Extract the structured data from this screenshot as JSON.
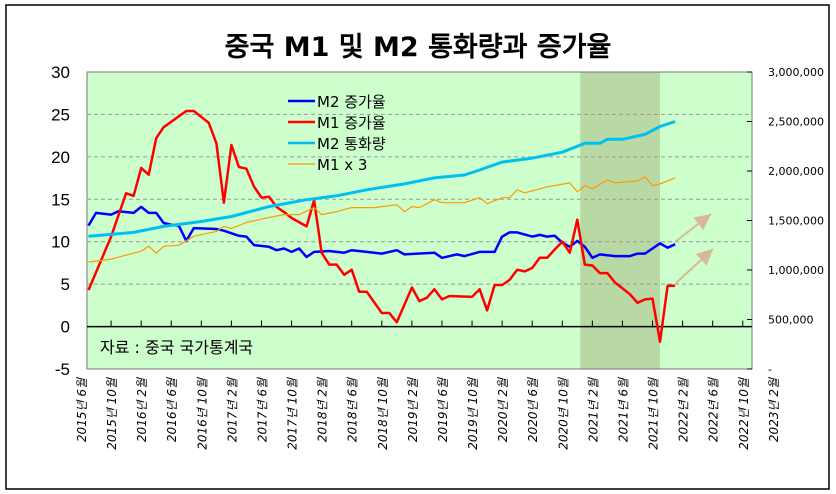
{
  "chart_data": {
    "type": "line",
    "title": "중국 M1 및 M2 통화량과 증가율",
    "source_note": "자료 : 중국 국가통계국",
    "x_unit": "months since 2015-06",
    "x_tick_labels": [
      "2015년 6월",
      "2015년 10월",
      "2016년 2월",
      "2016년 6월",
      "2016년 10월",
      "2017년 2월",
      "2017년 6월",
      "2017년 10월",
      "2018년 2월",
      "2018년 6월",
      "2018년 10월",
      "2019년 2월",
      "2019년 6월",
      "2019년 10월",
      "2020년 2월",
      "2020년 6월",
      "2020년 10월",
      "2021년 2월",
      "2021년 6월",
      "2021년 10월",
      "2022년 2월",
      "2022년 6월",
      "2022년 10월",
      "2023년 2월"
    ],
    "xlim": [
      0,
      92
    ],
    "y_left": {
      "ylim": [
        -5,
        30
      ],
      "ticks": [
        "30",
        "25",
        "20",
        "15",
        "10",
        "5",
        "0",
        "-5"
      ],
      "grid": true
    },
    "y_right": {
      "ylim": [
        0,
        3000000
      ],
      "ticks": [
        "3,000,000",
        "2,500,000",
        "2,000,000",
        "1,500,000",
        "1,000,000",
        "500,000",
        "-"
      ]
    },
    "shaded_range": [
      66.4,
      77
    ],
    "legend": {
      "placement": "top-center",
      "entries": [
        "M2 증가율",
        "M1 증가율",
        "M2 통화량",
        "M1 x 3"
      ]
    },
    "colors": {
      "m2_growth": "#0000ff",
      "m1_growth": "#ff0000",
      "m2_stock": "#00c0f0",
      "m1x3": "#ff9900",
      "plot_bg": "#ccffcc",
      "shade": "#b8d8a4",
      "arrow": "#d8b898"
    },
    "series": [
      {
        "name": "M2 증가율",
        "axis": "left",
        "points": [
          [
            1,
            11.9
          ],
          [
            2,
            13.4
          ],
          [
            4,
            13.2
          ],
          [
            5,
            13.6
          ],
          [
            7,
            13.4
          ],
          [
            8,
            14.1
          ],
          [
            9,
            13.4
          ],
          [
            10,
            13.4
          ],
          [
            11,
            12.2
          ],
          [
            12,
            12
          ],
          [
            13,
            11.9
          ],
          [
            14,
            10.1
          ],
          [
            15,
            11.6
          ],
          [
            18,
            11.5
          ],
          [
            19,
            11.3
          ],
          [
            21,
            10.7
          ],
          [
            22,
            10.6
          ],
          [
            23,
            9.6
          ],
          [
            25,
            9.4
          ],
          [
            26,
            9.0
          ],
          [
            27,
            9.2
          ],
          [
            28,
            8.8
          ],
          [
            29,
            9.2
          ],
          [
            30,
            8.2
          ],
          [
            31,
            8.8
          ],
          [
            33,
            8.9
          ],
          [
            35,
            8.7
          ],
          [
            36,
            9.0
          ],
          [
            38,
            8.8
          ],
          [
            40,
            8.6
          ],
          [
            42,
            9.0
          ],
          [
            43,
            8.5
          ],
          [
            47,
            8.7
          ],
          [
            48,
            8.1
          ],
          [
            50,
            8.5
          ],
          [
            51,
            8.3
          ],
          [
            53,
            8.8
          ],
          [
            55,
            8.8
          ],
          [
            56,
            10.6
          ],
          [
            57,
            11.1
          ],
          [
            58,
            11.1
          ],
          [
            60,
            10.6
          ],
          [
            61,
            10.8
          ],
          [
            62,
            10.6
          ],
          [
            63,
            10.7
          ],
          [
            64,
            9.9
          ],
          [
            65,
            9.4
          ],
          [
            66,
            10.1
          ],
          [
            67,
            9.4
          ],
          [
            68,
            8.1
          ],
          [
            69,
            8.5
          ],
          [
            71,
            8.3
          ],
          [
            73,
            8.3
          ],
          [
            74,
            8.6
          ],
          [
            75,
            8.6
          ],
          [
            77,
            9.8
          ],
          [
            78,
            9.3
          ],
          [
            79,
            9.7
          ]
        ]
      },
      {
        "name": "M1 증가율",
        "axis": "left",
        "points": [
          [
            1,
            4.3
          ],
          [
            4,
            10.6
          ],
          [
            6,
            15.7
          ],
          [
            7,
            15.4
          ],
          [
            8,
            18.7
          ],
          [
            9,
            17.9
          ],
          [
            10,
            22.2
          ],
          [
            11,
            23.5
          ],
          [
            14,
            25.4
          ],
          [
            15,
            25.4
          ],
          [
            17,
            24
          ],
          [
            18,
            21.6
          ],
          [
            19,
            14.6
          ],
          [
            20,
            21.4
          ],
          [
            21,
            18.8
          ],
          [
            22,
            18.6
          ],
          [
            23,
            16.5
          ],
          [
            24,
            15.2
          ],
          [
            25,
            15.3
          ],
          [
            26,
            14.1
          ],
          [
            27,
            13.5
          ],
          [
            28,
            12.8
          ],
          [
            30,
            11.8
          ],
          [
            31,
            14.9
          ],
          [
            32,
            8.7
          ],
          [
            33,
            7.3
          ],
          [
            34,
            7.3
          ],
          [
            35,
            6.1
          ],
          [
            36,
            6.7
          ],
          [
            37,
            4.1
          ],
          [
            38,
            4.1
          ],
          [
            40,
            1.6
          ],
          [
            41,
            1.6
          ],
          [
            42,
            0.5
          ],
          [
            44,
            4.6
          ],
          [
            45,
            3.0
          ],
          [
            46,
            3.4
          ],
          [
            47,
            4.4
          ],
          [
            48,
            3.2
          ],
          [
            49,
            3.6
          ],
          [
            52,
            3.5
          ],
          [
            53,
            4.4
          ],
          [
            54,
            1.9
          ],
          [
            55,
            4.9
          ],
          [
            56,
            4.9
          ],
          [
            57,
            5.5
          ],
          [
            58,
            6.7
          ],
          [
            59,
            6.5
          ],
          [
            60,
            6.9
          ],
          [
            61,
            8.1
          ],
          [
            62,
            8.1
          ],
          [
            63,
            9.1
          ],
          [
            64,
            10
          ],
          [
            65,
            8.7
          ],
          [
            66,
            12.6
          ],
          [
            67,
            7.3
          ],
          [
            68,
            7.2
          ],
          [
            69,
            6.3
          ],
          [
            70,
            6.3
          ],
          [
            71,
            5.2
          ],
          [
            73,
            3.8
          ],
          [
            74,
            2.8
          ],
          [
            75,
            3.2
          ],
          [
            76,
            3.3
          ],
          [
            77,
            -1.8
          ],
          [
            78,
            4.8
          ],
          [
            79,
            4.8
          ]
        ]
      },
      {
        "name": "M2 통화량",
        "axis": "right",
        "points": [
          [
            1,
            1340000
          ],
          [
            7,
            1380000
          ],
          [
            11,
            1440000
          ],
          [
            16,
            1490000
          ],
          [
            20,
            1540000
          ],
          [
            25,
            1640000
          ],
          [
            30,
            1710000
          ],
          [
            34,
            1750000
          ],
          [
            38,
            1810000
          ],
          [
            43,
            1870000
          ],
          [
            47,
            1930000
          ],
          [
            51,
            1960000
          ],
          [
            53,
            2010000
          ],
          [
            56,
            2090000
          ],
          [
            60,
            2130000
          ],
          [
            64,
            2190000
          ],
          [
            67,
            2280000
          ],
          [
            69,
            2280000
          ],
          [
            70,
            2320000
          ],
          [
            72,
            2320000
          ],
          [
            75,
            2370000
          ],
          [
            77,
            2450000
          ],
          [
            79,
            2500000
          ]
        ]
      },
      {
        "name": "M1 x 3",
        "axis": "right",
        "points": [
          [
            1,
            1080000
          ],
          [
            4,
            1110000
          ],
          [
            8,
            1190000
          ],
          [
            9,
            1240000
          ],
          [
            10,
            1170000
          ],
          [
            11,
            1240000
          ],
          [
            13,
            1250000
          ],
          [
            15,
            1340000
          ],
          [
            18,
            1390000
          ],
          [
            19,
            1440000
          ],
          [
            20,
            1420000
          ],
          [
            22,
            1480000
          ],
          [
            25,
            1530000
          ],
          [
            27,
            1560000
          ],
          [
            29,
            1560000
          ],
          [
            31,
            1630000
          ],
          [
            32,
            1560000
          ],
          [
            34,
            1590000
          ],
          [
            36,
            1630000
          ],
          [
            39,
            1630000
          ],
          [
            40,
            1640000
          ],
          [
            42,
            1660000
          ],
          [
            43,
            1590000
          ],
          [
            44,
            1640000
          ],
          [
            45,
            1630000
          ],
          [
            47,
            1710000
          ],
          [
            48,
            1680000
          ],
          [
            51,
            1680000
          ],
          [
            53,
            1730000
          ],
          [
            54,
            1670000
          ],
          [
            56,
            1730000
          ],
          [
            57,
            1730000
          ],
          [
            58,
            1810000
          ],
          [
            59,
            1780000
          ],
          [
            60,
            1800000
          ],
          [
            62,
            1840000
          ],
          [
            65,
            1880000
          ],
          [
            66,
            1790000
          ],
          [
            67,
            1850000
          ],
          [
            68,
            1820000
          ],
          [
            70,
            1910000
          ],
          [
            71,
            1880000
          ],
          [
            74,
            1900000
          ],
          [
            75,
            1940000
          ],
          [
            76,
            1850000
          ],
          [
            77,
            1870000
          ],
          [
            79,
            1930000
          ]
        ]
      }
    ]
  }
}
